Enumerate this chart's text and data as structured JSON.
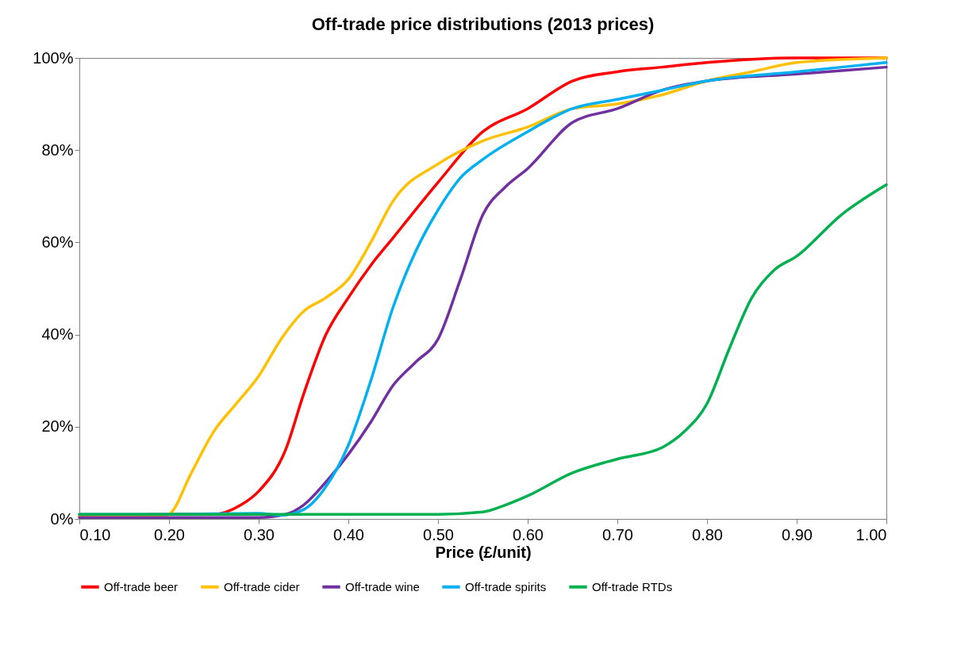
{
  "chart_data": {
    "type": "line",
    "title": "Off-trade price distributions (2013 prices)",
    "xlabel": "Price (£/unit)",
    "xlim": [
      0.1,
      1.0
    ],
    "xticks": [
      {
        "value": 0.1,
        "label": "0.10"
      },
      {
        "value": 0.2,
        "label": "0.20"
      },
      {
        "value": 0.3,
        "label": "0.30"
      },
      {
        "value": 0.4,
        "label": "0.40"
      },
      {
        "value": 0.5,
        "label": "0.50"
      },
      {
        "value": 0.6,
        "label": "0.60"
      },
      {
        "value": 0.7,
        "label": "0.70"
      },
      {
        "value": 0.8,
        "label": "0.80"
      },
      {
        "value": 0.9,
        "label": "0.90"
      },
      {
        "value": 1.0,
        "label": "1.00"
      }
    ],
    "ylim": [
      0,
      100
    ],
    "yticks": [
      {
        "value": 0,
        "label": "0%"
      },
      {
        "value": 20,
        "label": "20%"
      },
      {
        "value": 40,
        "label": "40%"
      },
      {
        "value": 60,
        "label": "60%"
      },
      {
        "value": 80,
        "label": "80%"
      },
      {
        "value": 100,
        "label": "100%"
      }
    ],
    "grid": false,
    "legend": "bottom",
    "marker": "none",
    "line_style": "solid",
    "series": [
      {
        "name": "Off-trade beer",
        "color": "#ff0000",
        "x": [
          0.1,
          0.2,
          0.25,
          0.28,
          0.3,
          0.33,
          0.35,
          0.375,
          0.4,
          0.425,
          0.45,
          0.5,
          0.55,
          0.6,
          0.65,
          0.7,
          0.75,
          0.8,
          0.9,
          1.0
        ],
        "values": [
          0.5,
          1,
          1,
          3,
          6,
          15,
          27,
          40,
          48,
          55,
          61,
          73,
          84,
          89,
          95,
          97,
          98,
          99,
          100,
          100
        ]
      },
      {
        "name": "Off-trade cider",
        "color": "#ffc000",
        "x": [
          0.1,
          0.19,
          0.2,
          0.225,
          0.25,
          0.275,
          0.3,
          0.325,
          0.35,
          0.375,
          0.4,
          0.425,
          0.45,
          0.5,
          0.55,
          0.6,
          0.65,
          0.7,
          0.75,
          0.8,
          0.85,
          0.9,
          1.0
        ],
        "values": [
          0.5,
          0.5,
          1,
          10,
          19,
          25,
          31,
          39,
          45,
          48,
          52,
          60,
          69,
          77,
          82,
          85,
          89,
          90,
          92,
          95,
          97,
          99,
          100
        ]
      },
      {
        "name": "Off-trade wine",
        "color": "#7030a0",
        "x": [
          0.1,
          0.3,
          0.33,
          0.35,
          0.375,
          0.4,
          0.425,
          0.45,
          0.475,
          0.5,
          0.525,
          0.55,
          0.575,
          0.6,
          0.65,
          0.7,
          0.75,
          0.8,
          0.9,
          1.0
        ],
        "values": [
          0.3,
          0.3,
          1,
          3,
          8,
          14,
          21,
          29,
          34,
          39,
          52,
          66,
          72,
          76,
          86,
          89,
          93,
          95,
          96.5,
          98
        ]
      },
      {
        "name": "Off-trade spirits",
        "color": "#00b0f0",
        "x": [
          0.1,
          0.2,
          0.3,
          0.325,
          0.35,
          0.375,
          0.4,
          0.425,
          0.45,
          0.475,
          0.5,
          0.525,
          0.55,
          0.6,
          0.65,
          0.7,
          0.75,
          0.8,
          0.9,
          1.0
        ],
        "values": [
          1,
          1,
          1.2,
          0.8,
          2,
          7,
          16,
          30,
          46,
          58,
          67,
          74,
          78,
          84,
          89,
          91,
          93,
          95,
          97,
          99
        ]
      },
      {
        "name": "Off-trade RTDs",
        "color": "#00b050",
        "x": [
          0.1,
          0.3,
          0.5,
          0.55,
          0.575,
          0.6,
          0.65,
          0.7,
          0.75,
          0.775,
          0.8,
          0.825,
          0.85,
          0.875,
          0.9,
          0.95,
          1.0
        ],
        "values": [
          1,
          1,
          1,
          1.5,
          3,
          5,
          10,
          13,
          15.5,
          19,
          25,
          37,
          48,
          54,
          57,
          66,
          72.5
        ]
      }
    ]
  }
}
